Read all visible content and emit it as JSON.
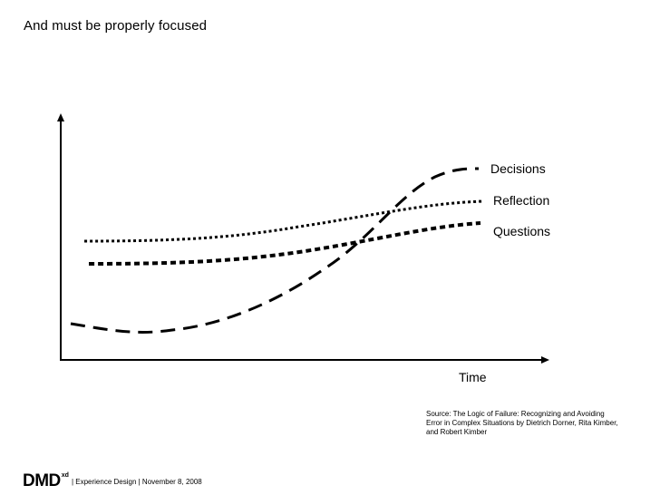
{
  "slide": {
    "title": "And must be properly focused"
  },
  "diagram": {
    "x_axis_label": "Time",
    "curves": [
      {
        "name": "Decisions",
        "style": "long-dash",
        "color": "#000000"
      },
      {
        "name": "Reflection",
        "style": "dotted",
        "color": "#000000"
      },
      {
        "name": "Questions",
        "style": "short-dash",
        "color": "#000000"
      }
    ]
  },
  "source_note": "Source: The Logic of Failure: Recognizing and Avoiding Error in Complex Situations by Dietrich Dorner, Rita Kimber, and Robert Kimber",
  "footer": {
    "logo_text": "DMD",
    "logo_superscript": "xd",
    "text": "| Experience Design | November 8, 2008"
  }
}
